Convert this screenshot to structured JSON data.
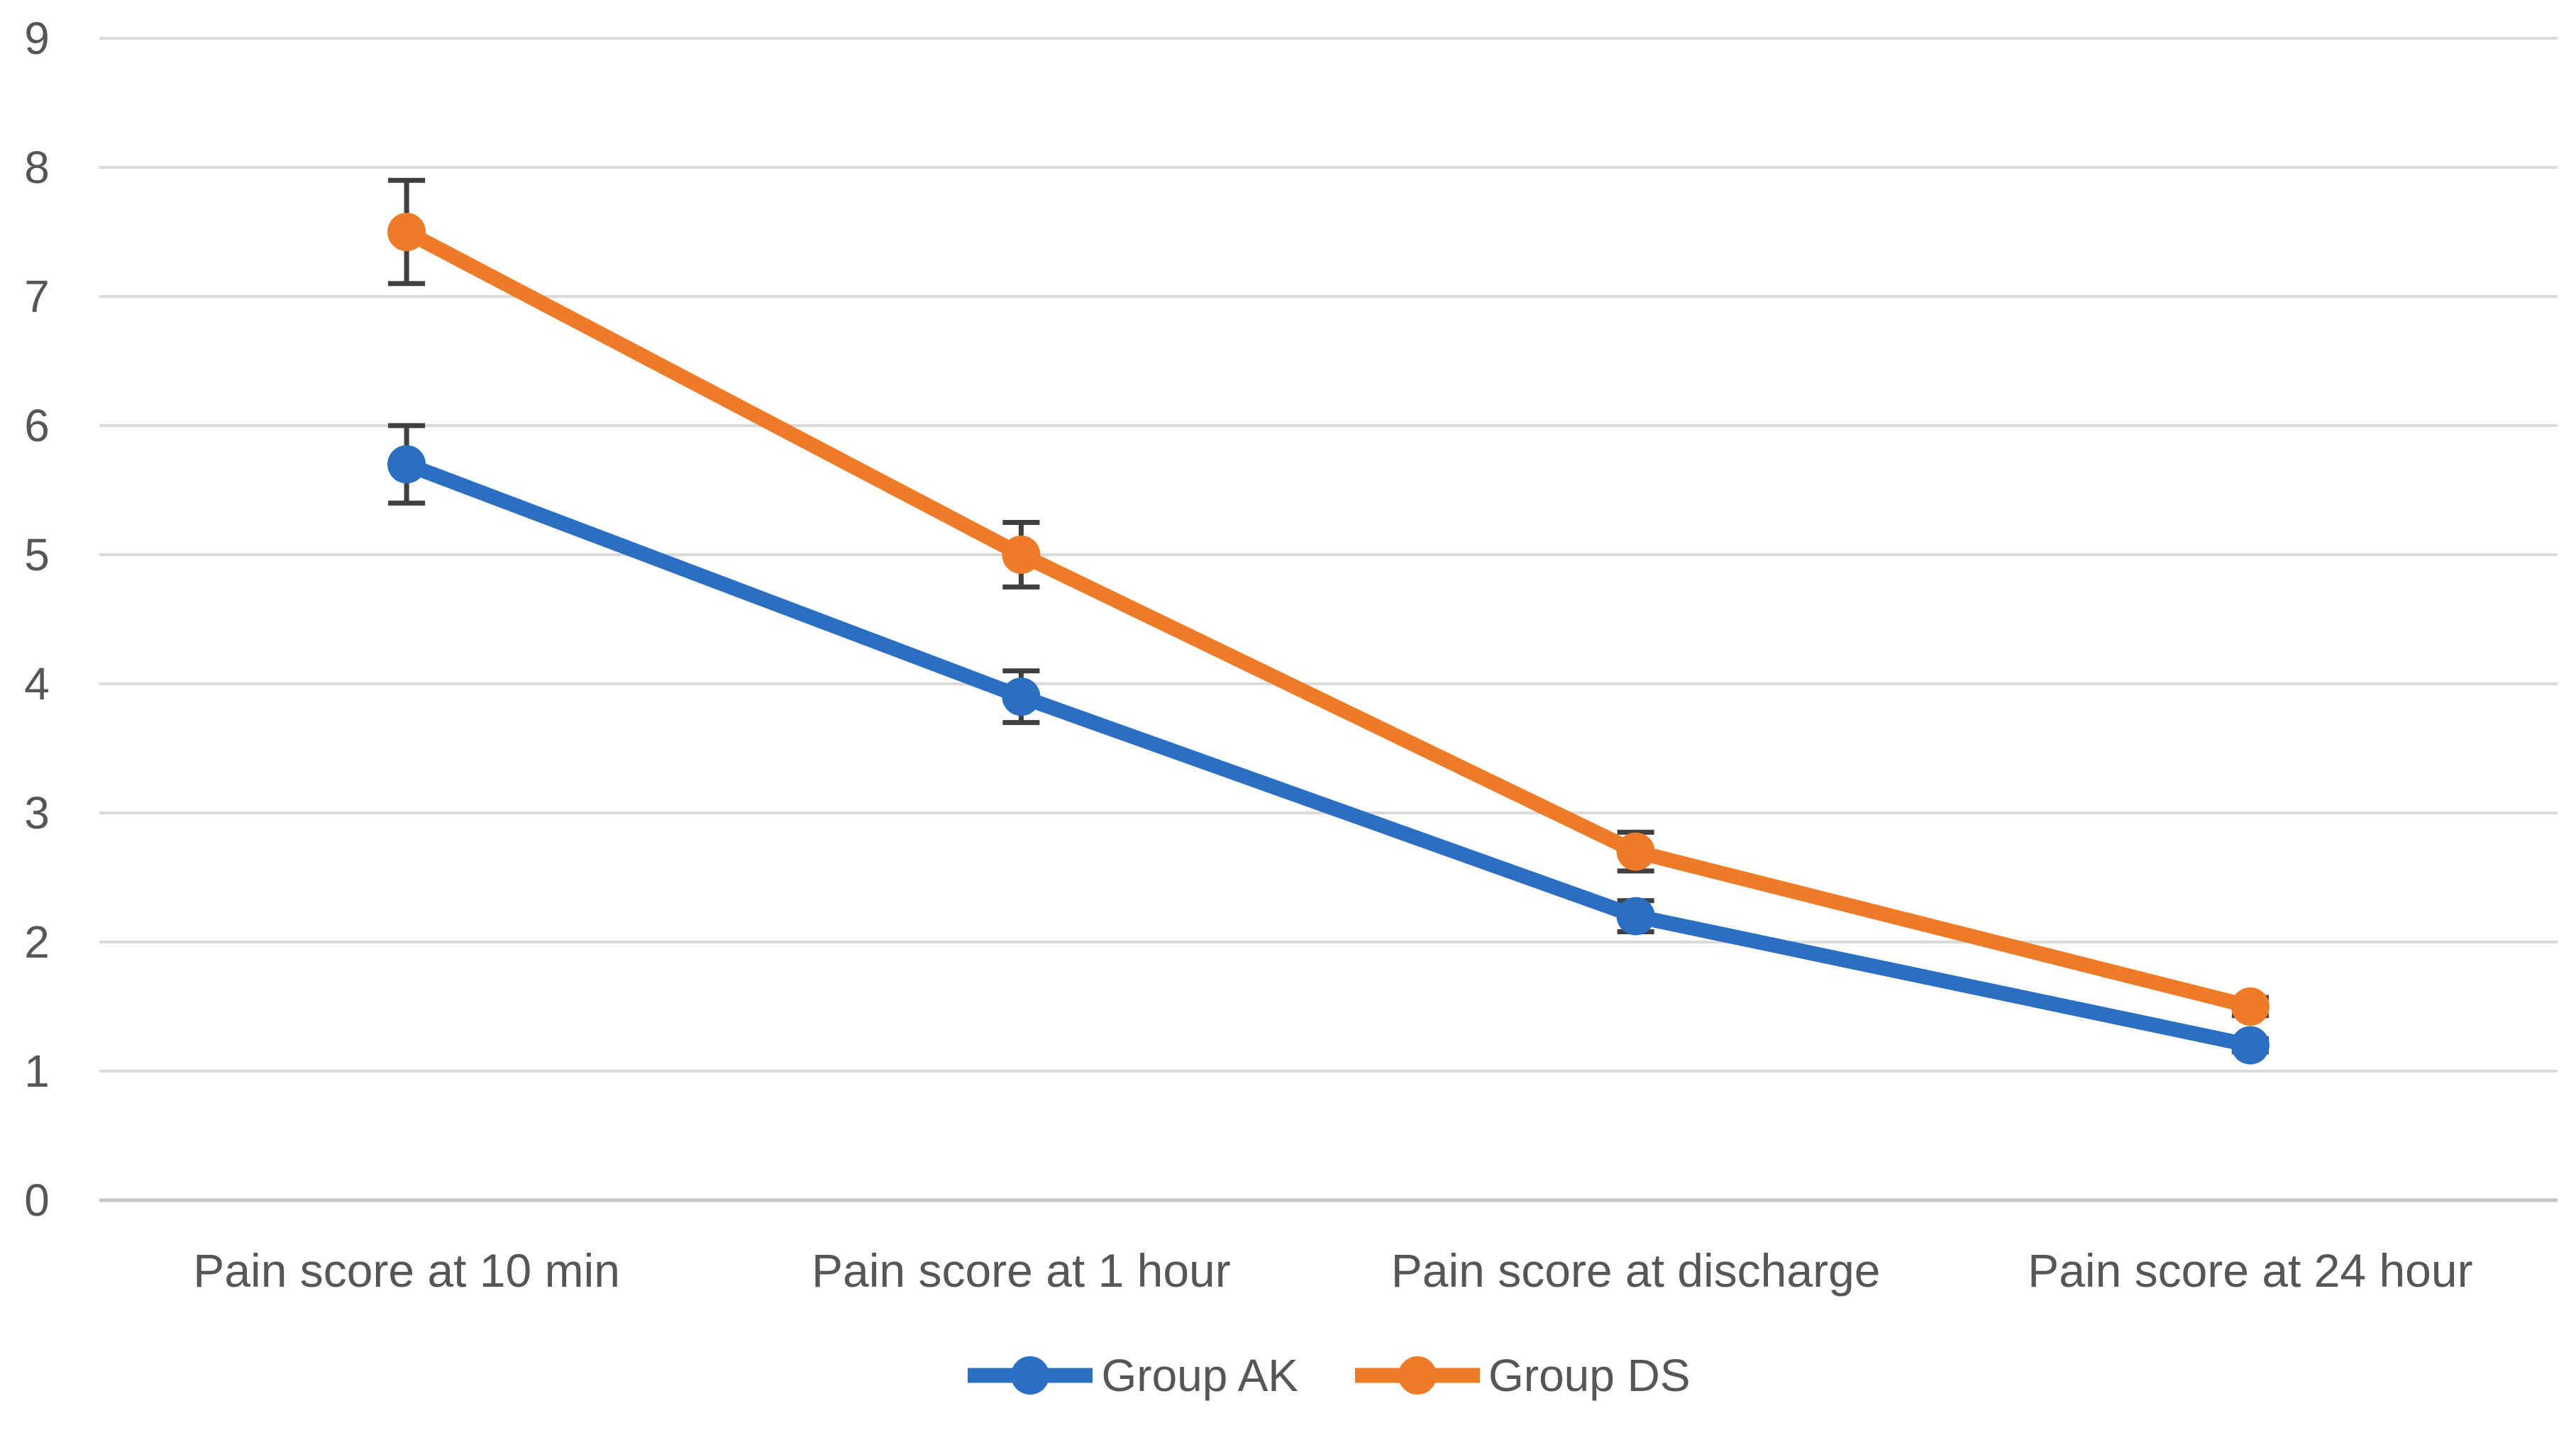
{
  "chart_data": {
    "type": "line",
    "title": "",
    "xlabel": "",
    "ylabel": "",
    "categories": [
      "Pain score at 10 min",
      "Pain score at 1 hour",
      "Pain score at discharge",
      "Pain score at 24 hour"
    ],
    "series": [
      {
        "name": "Group AK",
        "color": "#2b6fc2",
        "values": [
          5.7,
          3.9,
          2.2,
          1.2
        ],
        "error_bars": [
          0.3,
          0.2,
          0.12,
          0.05
        ],
        "marker": "circle"
      },
      {
        "name": "Group DS",
        "color": "#ee7b28",
        "values": [
          7.5,
          5.0,
          2.7,
          1.5
        ],
        "error_bars": [
          0.4,
          0.25,
          0.15,
          0.07
        ],
        "marker": "circle"
      }
    ],
    "y_ticks": [
      0,
      1,
      2,
      3,
      4,
      5,
      6,
      7,
      8,
      9
    ],
    "ylim": [
      0,
      9
    ],
    "grid": "horizontal",
    "legend_position": "bottom"
  },
  "style": {
    "gridline_color": "#d9d9d9",
    "axis_line_color": "#c4c4c4",
    "error_bar_color": "#3f3f3f",
    "text_color": "#565656",
    "background_color": "#ffffff"
  }
}
